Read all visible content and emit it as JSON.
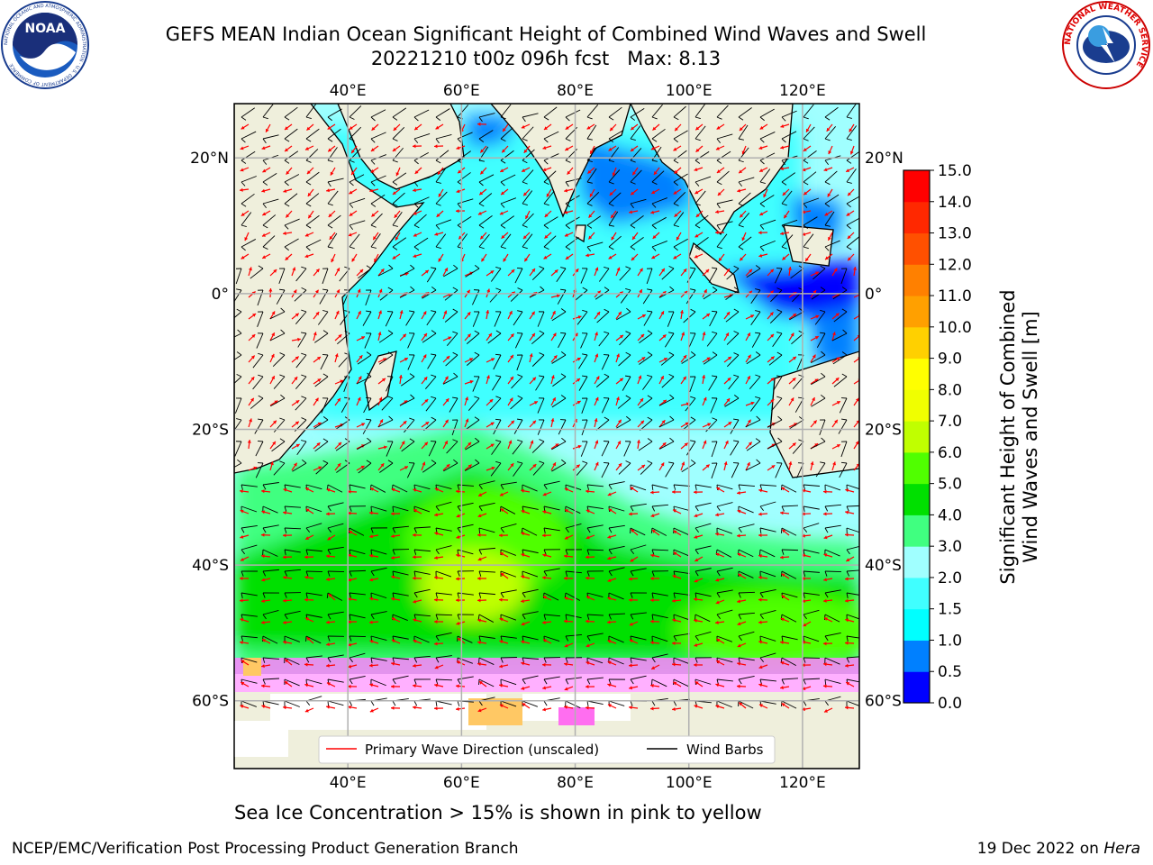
{
  "header": {
    "title_line1": "GEFS MEAN Indian Ocean Significant Height of Combined Wind Waves and Swell",
    "title_line2": "20221210 t00z 096h fcst   Max: 8.13",
    "noaa_logo_text": "NOAA",
    "noaa_ring_text": "NATIONAL OCEANIC AND ATMOSPHERIC ADMINISTRATION · U.S. DEPARTMENT OF COMMERCE",
    "nws_ring_text": "NATIONAL WEATHER SERVICE"
  },
  "map": {
    "lon_range": [
      20,
      130
    ],
    "lat_range": [
      -70,
      28
    ],
    "lon_ticks": [
      "40°E",
      "60°E",
      "80°E",
      "100°E",
      "120°E"
    ],
    "lat_ticks": [
      "20°N",
      "0°",
      "20°S",
      "40°S",
      "60°S"
    ],
    "grid": true,
    "legend": {
      "placement": "bottom-center",
      "wave_label": "Primary Wave Direction (unscaled)",
      "wind_label": "Wind Barbs",
      "wave_color": "#ff0000",
      "wind_color": "#000000"
    },
    "land_color": "#efefdc"
  },
  "colorbar": {
    "title": "Significant Height of Combined Wind Waves and Swell [m]",
    "levels": [
      "0.0",
      "0.5",
      "1.0",
      "1.5",
      "2.0",
      "3.0",
      "4.0",
      "5.0",
      "6.0",
      "7.0",
      "8.0",
      "9.0",
      "10.0",
      "11.0",
      "12.0",
      "13.0",
      "14.0",
      "15.0"
    ],
    "colors": [
      "#0000ff",
      "#0080ff",
      "#00ffff",
      "#40ffff",
      "#a0ffff",
      "#40ff80",
      "#00e000",
      "#50ff00",
      "#c0ff00",
      "#f0ff00",
      "#ffff00",
      "#ffd000",
      "#ffa000",
      "#ff8000",
      "#ff5000",
      "#ff2800",
      "#ff0000"
    ]
  },
  "caption": "Sea Ice Concentration > 15% is shown in pink to yellow",
  "footer": {
    "left": "NCEP/EMC/Verification Post Processing Product Generation Branch",
    "right_date": "19 Dec 2022 on ",
    "right_host": "Hera"
  }
}
